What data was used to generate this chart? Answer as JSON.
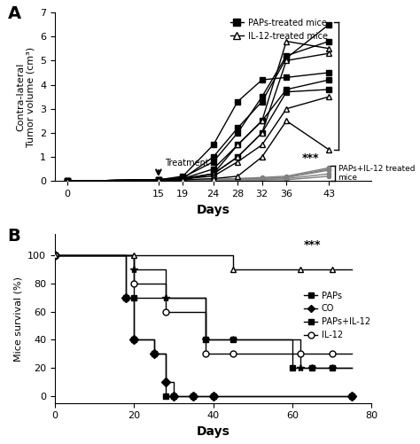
{
  "panel_A": {
    "days": [
      0,
      15,
      19,
      24,
      28,
      32,
      36,
      43
    ],
    "PAPs_mice": [
      [
        0.0,
        0.05,
        0.1,
        1.0,
        2.2,
        3.3,
        5.1,
        6.5
      ],
      [
        0.0,
        0.05,
        0.15,
        0.8,
        2.0,
        3.5,
        5.2,
        5.8
      ],
      [
        0.0,
        0.05,
        0.2,
        1.5,
        3.3,
        4.2,
        4.3,
        4.5
      ],
      [
        0.0,
        0.05,
        0.1,
        0.5,
        1.5,
        2.5,
        3.8,
        4.2
      ],
      [
        0.0,
        0.05,
        0.05,
        0.3,
        1.0,
        2.0,
        3.7,
        3.8
      ]
    ],
    "IL12_mice": [
      [
        0.0,
        0.05,
        0.1,
        0.3,
        1.5,
        2.5,
        5.8,
        5.5
      ],
      [
        0.0,
        0.05,
        0.1,
        0.3,
        1.0,
        2.0,
        5.0,
        5.3
      ],
      [
        0.0,
        0.05,
        0.1,
        0.2,
        0.8,
        1.5,
        3.0,
        3.5
      ],
      [
        0.0,
        0.05,
        0.05,
        0.1,
        0.2,
        1.0,
        2.5,
        1.3
      ]
    ],
    "PAPs_IL12_mice": [
      [
        0.0,
        0.0,
        0.0,
        0.05,
        0.1,
        0.1,
        0.15,
        0.5
      ],
      [
        0.0,
        0.0,
        0.0,
        0.05,
        0.1,
        0.15,
        0.2,
        0.55
      ],
      [
        0.0,
        0.0,
        0.0,
        0.05,
        0.1,
        0.1,
        0.15,
        0.45
      ],
      [
        0.0,
        0.0,
        0.0,
        0.0,
        0.05,
        0.05,
        0.1,
        0.3
      ],
      [
        0.0,
        0.0,
        0.0,
        0.0,
        0.05,
        0.05,
        0.05,
        0.2
      ]
    ],
    "ylim": [
      0,
      7
    ],
    "yticks": [
      0,
      1,
      2,
      3,
      4,
      5,
      6,
      7
    ],
    "ylabel": "Contra-lateral\nTumor volume (cm³)",
    "xlabel": "Days",
    "treatment_day": 15,
    "treatment_label": "Treatment",
    "star_text": "***",
    "star_x": 40,
    "star_y": 0.72,
    "bracket_label": "PAPs+IL-12 treated\nmice",
    "legend_PAPs": "PAPs-treated mice",
    "legend_IL12": "IL-12-treated mice",
    "xlim": [
      -2,
      50
    ]
  },
  "panel_B": {
    "ylim": [
      -5,
      115
    ],
    "yticks": [
      0,
      20,
      40,
      60,
      80,
      100
    ],
    "xlim": [
      0,
      80
    ],
    "xticks": [
      0,
      20,
      40,
      60,
      80
    ],
    "ylabel": "Mice survival (%)",
    "xlabel": "Days",
    "star_text": "***",
    "star_x": 65,
    "star_y": 103
  }
}
